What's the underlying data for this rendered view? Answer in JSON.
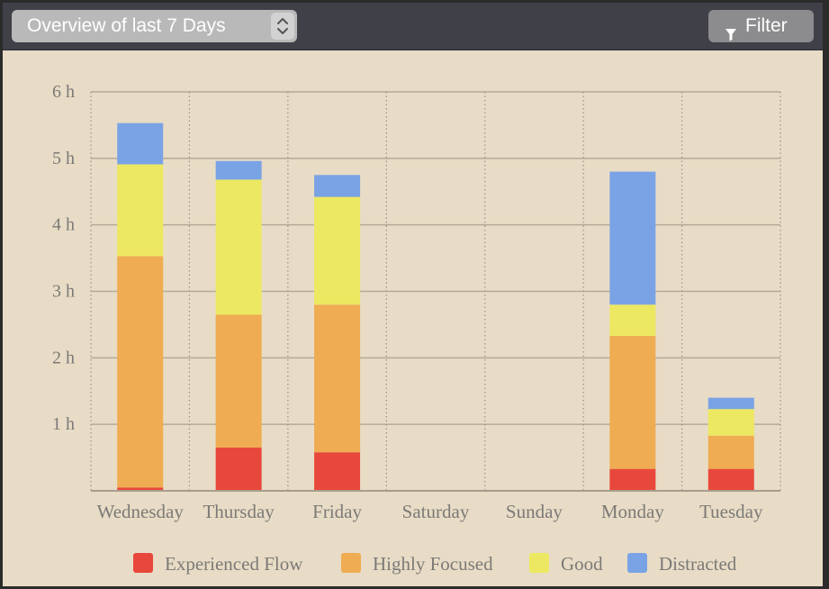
{
  "toolbar": {
    "range_label": "Overview of last 7 Days",
    "filter_label": "Filter",
    "filter_icon": "funnel-icon",
    "stepper_icon": "chevron-up-down-icon"
  },
  "chart_data": {
    "type": "bar",
    "stacked": true,
    "categories": [
      "Wednesday",
      "Thursday",
      "Friday",
      "Saturday",
      "Sunday",
      "Monday",
      "Tuesday"
    ],
    "series": [
      {
        "name": "Experienced Flow",
        "color": "#e8483b",
        "values": [
          0.05,
          0.65,
          0.58,
          0,
          0,
          0.33,
          0.33
        ]
      },
      {
        "name": "Highly Focused",
        "color": "#efac52",
        "values": [
          3.48,
          2.0,
          2.22,
          0,
          0,
          2.0,
          0.5
        ]
      },
      {
        "name": "Good",
        "color": "#ede861",
        "values": [
          1.38,
          2.03,
          1.62,
          0,
          0,
          0.47,
          0.4
        ]
      },
      {
        "name": "Distracted",
        "color": "#7aa3e5",
        "values": [
          0.62,
          0.28,
          0.33,
          0,
          0,
          2.0,
          0.17
        ]
      }
    ],
    "ylim": [
      0,
      6
    ],
    "yticks": [
      1,
      2,
      3,
      4,
      5,
      6
    ],
    "ytick_labels": [
      "1 h",
      "2 h",
      "3 h",
      "4 h",
      "5 h",
      "6 h"
    ],
    "grid": true,
    "legend": "bottom"
  }
}
